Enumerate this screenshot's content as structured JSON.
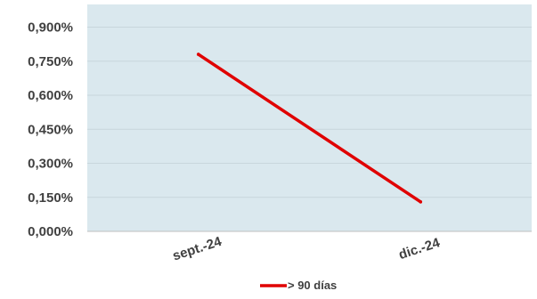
{
  "chart_data": {
    "type": "line",
    "categories": [
      "sept.-24",
      "dic.-24"
    ],
    "series": [
      {
        "name": "> 90 días",
        "values": [
          0.78,
          0.13
        ],
        "color": "#e00000"
      }
    ],
    "y_ticks": [
      "0,000%",
      "0,150%",
      "0,300%",
      "0,450%",
      "0,600%",
      "0,750%",
      "0,900%"
    ],
    "y_tick_values": [
      0,
      0.15,
      0.3,
      0.45,
      0.6,
      0.75,
      0.9
    ],
    "ylim": [
      0,
      1.0
    ],
    "ylabel": "",
    "xlabel": "",
    "title": "",
    "grid": true,
    "legend_position": "bottom",
    "plot_background": "#dae8ee",
    "grid_color": "#c8d6dc"
  }
}
